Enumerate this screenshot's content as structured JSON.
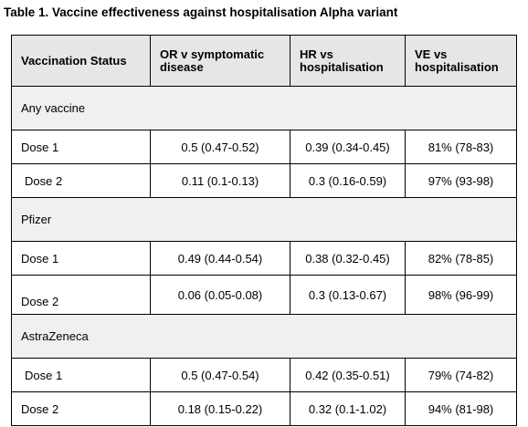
{
  "title": "Table 1. Vaccine effectiveness against hospitalisation Alpha variant",
  "headers": [
    "Vaccination Status",
    "OR v symptomatic disease",
    "HR vs hospitalisation",
    "VE vs hospitalisation"
  ],
  "groups": [
    {
      "name": "Any vaccine",
      "rows": [
        {
          "dose": "Dose 1",
          "or": "0.5 (0.47-0.52)",
          "hr": "0.39 (0.34-0.45)",
          "ve": "81% (78-83)"
        },
        {
          "dose": "Dose 2",
          "or": "0.11 (0.1-0.13)",
          "hr": "0.3 (0.16-0.59)",
          "ve": "97% (93-98)"
        }
      ]
    },
    {
      "name": "Pfizer",
      "rows": [
        {
          "dose": "Dose 1",
          "or": "0.49 (0.44-0.54)",
          "hr": "0.38 (0.32-0.45)",
          "ve": "82% (78-85)"
        },
        {
          "dose": "Dose 2",
          "or": "0.06 (0.05-0.08)",
          "hr": "0.3 (0.13-0.67)",
          "ve": "98% (96-99)"
        }
      ]
    },
    {
      "name": "AstraZeneca",
      "rows": [
        {
          "dose": "Dose 1",
          "or": "0.5 (0.47-0.54)",
          "hr": "0.42 (0.35-0.51)",
          "ve": "79% (74-82)"
        },
        {
          "dose": "Dose 2",
          "or": "0.18 (0.15-0.22)",
          "hr": "0.32 (0.1-1.02)",
          "ve": "94% (81-98)"
        }
      ]
    }
  ]
}
